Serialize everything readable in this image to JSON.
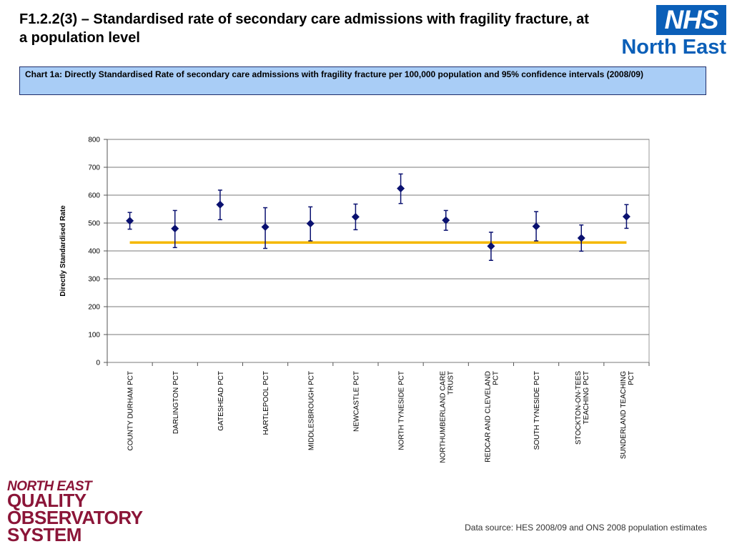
{
  "header": {
    "title": "F1.2.2(3) – Standardised rate of secondary care admissions with fragility fracture, at a population level",
    "nhs_logo": {
      "badge": "NHS",
      "region": "North East",
      "color": "#0b5fb8"
    }
  },
  "subtitle": "Chart 1a: Directly Standardised Rate of secondary care admissions with fragility fracture per 100,000 population and 95% confidence intervals (2008/09)",
  "footer": {
    "qos_logo": [
      "NORTH EAST",
      "QUALITY",
      "OBSERVATORY",
      "SYSTEM"
    ],
    "qos_color": "#8b1538",
    "data_source": "Data source: HES 2008/09 and ONS 2008 population estimates"
  },
  "chart_data": {
    "type": "scatter",
    "title": "",
    "xlabel": "",
    "ylabel": "Directly Standardised Rate",
    "ylim": [
      0,
      800
    ],
    "yticks": [
      0,
      100,
      200,
      300,
      400,
      500,
      600,
      700,
      800
    ],
    "grid": true,
    "categories": [
      "COUNTY DURHAM PCT",
      "DARLINGTON PCT",
      "GATESHEAD PCT",
      "HARTLEPOOL PCT",
      "MIDDLESBROUGH PCT",
      "NEWCASTLE PCT",
      "NORTH TYNESIDE PCT",
      "NORTHUMBERLAND CARE TRUST",
      "REDCAR AND CLEVELAND PCT",
      "SOUTH TYNESIDE PCT",
      "STOCKTON-ON-TEES TEACHING PCT",
      "SUNDERLAND TEACHING PCT"
    ],
    "category_lines": [
      [
        "COUNTY DURHAM PCT"
      ],
      [
        "DARLINGTON PCT"
      ],
      [
        "GATESHEAD PCT"
      ],
      [
        "HARTLEPOOL PCT"
      ],
      [
        "MIDDLESBROUGH PCT"
      ],
      [
        "NEWCASTLE PCT"
      ],
      [
        "NORTH TYNESIDE PCT"
      ],
      [
        "NORTHUMBERLAND CARE",
        "TRUST"
      ],
      [
        "REDCAR AND CLEVELAND",
        "PCT"
      ],
      [
        "SOUTH TYNESIDE PCT"
      ],
      [
        "STOCKTON-ON-TEES",
        "TEACHING PCT"
      ],
      [
        "SUNDERLAND TEACHING",
        "PCT"
      ]
    ],
    "values": [
      508,
      480,
      566,
      486,
      498,
      522,
      624,
      510,
      417,
      488,
      446,
      523
    ],
    "ci_lower": [
      478,
      412,
      512,
      409,
      436,
      476,
      570,
      474,
      366,
      436,
      399,
      481
    ],
    "ci_upper": [
      538,
      545,
      618,
      555,
      558,
      568,
      676,
      545,
      467,
      541,
      493,
      566
    ],
    "reference_line": {
      "value": 430,
      "color": "#f5b800"
    },
    "marker_color": "#0a1170"
  }
}
